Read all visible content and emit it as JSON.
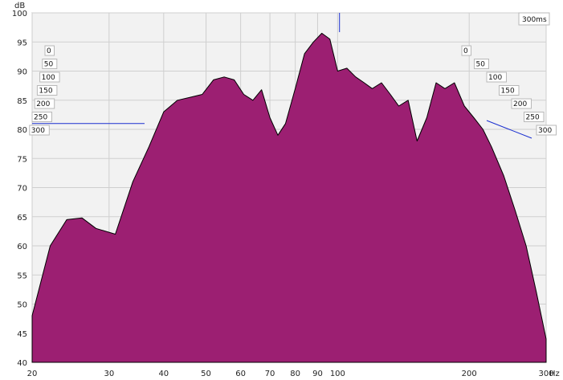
{
  "chart_data": {
    "type": "area",
    "subtype": "waterfall (cumulative spectral decay)",
    "ylabel": "dB",
    "xunit": "Hz",
    "xscale": "log",
    "xlim": [
      20,
      300
    ],
    "ylim": [
      40,
      100
    ],
    "x_ticks": [
      "20",
      "30",
      "40",
      "50",
      "60",
      "70",
      "80",
      "90",
      "100",
      "200",
      "300"
    ],
    "x_tick_values": [
      20,
      30,
      40,
      50,
      60,
      70,
      80,
      90,
      100,
      200,
      300
    ],
    "y_ticks": [
      "100",
      "95",
      "90",
      "85",
      "80",
      "75",
      "70",
      "65",
      "60",
      "55",
      "50",
      "45",
      "40"
    ],
    "y_tick_values": [
      100,
      95,
      90,
      85,
      80,
      75,
      70,
      65,
      60,
      55,
      50,
      45,
      40
    ],
    "time_axis_label": "300ms",
    "time_ticks": [
      "0",
      "50",
      "100",
      "150",
      "200",
      "250",
      "300"
    ],
    "time_tick_values": [
      0,
      50,
      100,
      150,
      200,
      250,
      300
    ],
    "cursor": {
      "freq_hz": 101,
      "level_db": 81
    },
    "fill_color": "#9c1f72",
    "line_color": "#000000",
    "grid": true,
    "series": [
      {
        "time_ms": 0,
        "x": [
          20,
          22,
          24,
          26,
          28,
          31,
          34,
          37,
          40,
          43,
          46,
          49,
          52,
          55,
          58,
          61,
          64,
          67,
          70,
          73,
          76,
          80,
          84,
          88,
          92,
          96,
          100,
          105,
          110,
          115,
          120,
          126,
          132,
          138,
          145,
          152,
          160,
          168,
          176,
          185,
          195,
          205,
          215,
          225,
          240,
          255,
          270,
          285,
          300
        ],
        "y": [
          48,
          60,
          64.5,
          64.8,
          63,
          62,
          71,
          77,
          83,
          85,
          85.5,
          86,
          88.5,
          89,
          88.5,
          86,
          85,
          86.8,
          82,
          79,
          81,
          87,
          93,
          95,
          96.5,
          95.5,
          90,
          90.5,
          89,
          88,
          87,
          88,
          86,
          84,
          85,
          78,
          82,
          88,
          87,
          88,
          84,
          82,
          80,
          77,
          72,
          66,
          60,
          52,
          44
        ]
      },
      {
        "time_ms": 25,
        "x": [
          20,
          22,
          24,
          26,
          28,
          31,
          34,
          37,
          40,
          43,
          46,
          49,
          52,
          55,
          58,
          61,
          64,
          67,
          70,
          73,
          76,
          80,
          84,
          88,
          92,
          96,
          100,
          105,
          110,
          115,
          120,
          126,
          132,
          138,
          145,
          152,
          160,
          168,
          176,
          185,
          195,
          205,
          215,
          225,
          240,
          255,
          270,
          285,
          300
        ],
        "y": [
          47,
          59,
          63,
          63.5,
          61.5,
          61,
          70,
          75.5,
          81,
          83.5,
          84,
          84.5,
          86.5,
          87,
          86,
          84,
          83,
          85,
          80,
          77,
          79,
          85,
          91,
          93,
          94.5,
          93,
          88,
          88.5,
          87,
          86,
          85,
          86,
          84,
          82,
          83,
          76,
          80,
          86,
          85,
          86,
          82,
          80,
          78,
          75,
          70,
          64,
          58,
          50,
          43
        ]
      },
      {
        "time_ms": 50,
        "x": [
          20,
          22,
          24,
          26,
          28,
          31,
          34,
          37,
          40,
          43,
          46,
          49,
          52,
          55,
          58,
          61,
          64,
          67,
          70,
          73,
          76,
          80,
          84,
          88,
          92,
          96,
          100,
          105,
          110,
          115,
          120,
          126,
          132,
          138,
          145,
          152,
          160,
          168,
          176,
          185,
          195,
          205,
          215,
          225,
          240,
          255,
          270,
          285,
          300
        ],
        "y": [
          46,
          57,
          61,
          61.5,
          59.5,
          59,
          67,
          73,
          78,
          80,
          81,
          81,
          83,
          84,
          82,
          80,
          79,
          82,
          76,
          73,
          76,
          82,
          88,
          90,
          91,
          89,
          84,
          85,
          83,
          82,
          81,
          83,
          80,
          78,
          79,
          72,
          76,
          82,
          81,
          82,
          78,
          76,
          74,
          71,
          66,
          60,
          55,
          48,
          43
        ]
      },
      {
        "time_ms": 75,
        "x": [
          20,
          22,
          24,
          26,
          28,
          31,
          34,
          37,
          40,
          43,
          46,
          49,
          52,
          55,
          58,
          61,
          64,
          67,
          70,
          73,
          76,
          80,
          84,
          88,
          92,
          96,
          100,
          105,
          110,
          115,
          120,
          126,
          132,
          138,
          145,
          152,
          160,
          168,
          176,
          185,
          195,
          205,
          215,
          225,
          240,
          255,
          270,
          285,
          300
        ],
        "y": [
          45,
          55,
          58,
          58,
          56,
          56,
          63,
          69,
          73,
          75,
          77,
          76,
          79,
          80,
          77,
          75,
          74,
          78,
          71,
          68,
          72,
          78,
          84,
          86,
          86,
          84,
          79,
          80,
          78,
          77,
          76,
          79,
          75,
          73,
          74,
          67,
          71,
          77,
          76,
          77,
          73,
          71,
          69,
          66,
          61,
          56,
          51,
          46,
          42
        ]
      },
      {
        "time_ms": 100,
        "x": [
          20,
          22,
          24,
          26,
          28,
          31,
          34,
          37,
          40,
          43,
          46,
          49,
          52,
          55,
          58,
          61,
          64,
          67,
          70,
          73,
          76,
          80,
          84,
          88,
          92,
          96,
          100,
          105,
          110,
          115,
          120,
          126,
          132,
          138,
          145,
          152,
          160,
          168,
          176,
          185,
          195,
          205,
          215,
          225,
          240,
          255,
          270,
          285,
          300
        ],
        "y": [
          44,
          53,
          55,
          54,
          52,
          53,
          59,
          64,
          68,
          70,
          72,
          70,
          74,
          75,
          71,
          69,
          69,
          73,
          66,
          63,
          67,
          73,
          79,
          80,
          80,
          78,
          73,
          74,
          72,
          71,
          70,
          73,
          69,
          67,
          68,
          62,
          65,
          71,
          70,
          71,
          67,
          65,
          63,
          61,
          56,
          52,
          48,
          44,
          41
        ]
      },
      {
        "time_ms": 150,
        "x": [
          20,
          22,
          24,
          26,
          28,
          31,
          34,
          37,
          40,
          43,
          46,
          49,
          52,
          55,
          58,
          61,
          64,
          67,
          70,
          73,
          76,
          80,
          84,
          88,
          92,
          96,
          100,
          105,
          110,
          115,
          120,
          126,
          132,
          138,
          145,
          152,
          160,
          168,
          176,
          185,
          195,
          205,
          215,
          225,
          240,
          255,
          270,
          285,
          300
        ],
        "y": [
          43,
          51,
          51,
          49,
          47,
          50,
          55,
          59,
          62,
          63,
          65,
          62,
          67,
          68,
          63,
          61,
          62,
          66,
          59,
          56,
          60,
          66,
          71,
          71,
          70,
          68,
          64,
          64,
          62,
          61,
          60,
          63,
          59,
          58,
          58,
          55,
          56,
          61,
          60,
          60,
          57,
          56,
          55,
          53,
          50,
          47,
          45,
          43,
          41
        ]
      },
      {
        "time_ms": 200,
        "x": [
          20,
          22,
          24,
          26,
          28,
          31,
          34,
          37,
          40,
          43,
          46,
          49,
          52,
          55,
          58,
          61,
          64,
          67,
          70,
          73,
          76,
          80,
          84,
          88,
          92,
          96,
          100,
          105,
          110,
          115,
          120,
          126,
          132,
          138,
          145,
          152,
          160,
          168,
          176,
          185,
          195,
          205,
          215,
          225,
          240,
          255,
          270,
          285,
          300
        ],
        "y": [
          42,
          49,
          48,
          45,
          43,
          47,
          52,
          55,
          57,
          57,
          59,
          56,
          61,
          62,
          57,
          55,
          56,
          60,
          53,
          50,
          54,
          59,
          63,
          63,
          61,
          59,
          56,
          55,
          54,
          53,
          52,
          54,
          51,
          50,
          50,
          48,
          49,
          52,
          51,
          51,
          49,
          48,
          47,
          46,
          45,
          43,
          42,
          41,
          40
        ]
      },
      {
        "time_ms": 250,
        "x": [
          20,
          22,
          24,
          26,
          28,
          31,
          34,
          37,
          40,
          43,
          46,
          49,
          52,
          55,
          58,
          61,
          64,
          67,
          70,
          73,
          76,
          80,
          84,
          88,
          92,
          96,
          100,
          105,
          110,
          115,
          120,
          126,
          132,
          138,
          145,
          152,
          160,
          168,
          176,
          185,
          195,
          205,
          215,
          225,
          240,
          255,
          270,
          285,
          300
        ],
        "y": [
          41,
          47,
          45,
          42,
          41,
          45,
          49,
          52,
          53,
          53,
          54,
          52,
          56,
          57,
          52,
          50,
          51,
          55,
          48,
          46,
          49,
          53,
          57,
          56,
          54,
          52,
          50,
          49,
          48,
          47,
          46,
          48,
          46,
          45,
          45,
          44,
          44,
          46,
          45,
          45,
          44,
          43,
          43,
          42,
          42,
          41,
          41,
          40,
          40
        ]
      },
      {
        "time_ms": 300,
        "x": [
          20,
          22,
          24,
          26,
          28,
          31,
          34,
          37,
          40,
          43,
          46,
          49,
          52,
          55,
          58,
          61,
          64,
          67,
          70,
          73,
          76,
          80,
          84,
          88,
          92,
          96,
          100,
          105,
          110,
          115,
          120,
          126,
          132,
          138,
          145,
          152,
          160,
          168,
          176,
          185,
          195,
          205,
          215,
          225,
          240,
          255,
          270,
          285,
          300
        ],
        "y": [
          40,
          45,
          43,
          41,
          40,
          43,
          47,
          50,
          51,
          50,
          51,
          49,
          53,
          54,
          49,
          47,
          48,
          52,
          45,
          43,
          46,
          50,
          53,
          52,
          50,
          48,
          46,
          45,
          44,
          44,
          43,
          44,
          43,
          42,
          42,
          41,
          41,
          42,
          42,
          41,
          41,
          41,
          40,
          40,
          40,
          40,
          40,
          40,
          40
        ]
      }
    ]
  }
}
